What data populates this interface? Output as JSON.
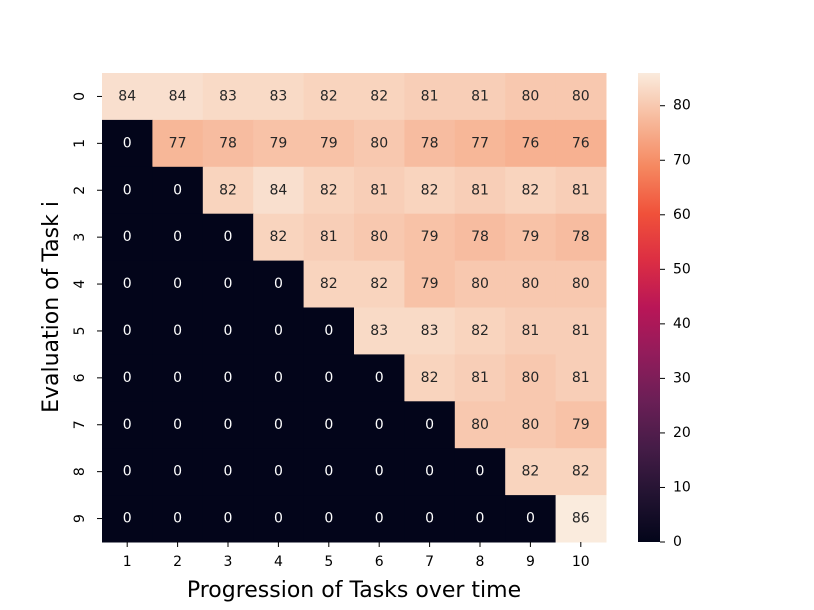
{
  "chart_data": {
    "type": "heatmap",
    "xlabel": "Progression of Tasks over time",
    "ylabel": "Evaluation of Task i",
    "x": [
      1,
      2,
      3,
      4,
      5,
      6,
      7,
      8,
      9,
      10
    ],
    "y": [
      0,
      1,
      2,
      3,
      4,
      5,
      6,
      7,
      8,
      9
    ],
    "values": [
      [
        84,
        84,
        83,
        83,
        82,
        82,
        81,
        81,
        80,
        80
      ],
      [
        0,
        77,
        78,
        79,
        79,
        80,
        78,
        77,
        76,
        76
      ],
      [
        0,
        0,
        82,
        84,
        82,
        81,
        82,
        81,
        82,
        81
      ],
      [
        0,
        0,
        0,
        82,
        81,
        80,
        79,
        78,
        79,
        78
      ],
      [
        0,
        0,
        0,
        0,
        82,
        82,
        79,
        80,
        80,
        80
      ],
      [
        0,
        0,
        0,
        0,
        0,
        83,
        83,
        82,
        81,
        81
      ],
      [
        0,
        0,
        0,
        0,
        0,
        0,
        82,
        81,
        80,
        81
      ],
      [
        0,
        0,
        0,
        0,
        0,
        0,
        0,
        80,
        80,
        79
      ],
      [
        0,
        0,
        0,
        0,
        0,
        0,
        0,
        0,
        82,
        82
      ],
      [
        0,
        0,
        0,
        0,
        0,
        0,
        0,
        0,
        0,
        86
      ]
    ],
    "colormap": "rocket",
    "zlim": [
      0,
      86
    ],
    "zticks": [
      0,
      10,
      20,
      30,
      40,
      50,
      60,
      70,
      80
    ]
  }
}
